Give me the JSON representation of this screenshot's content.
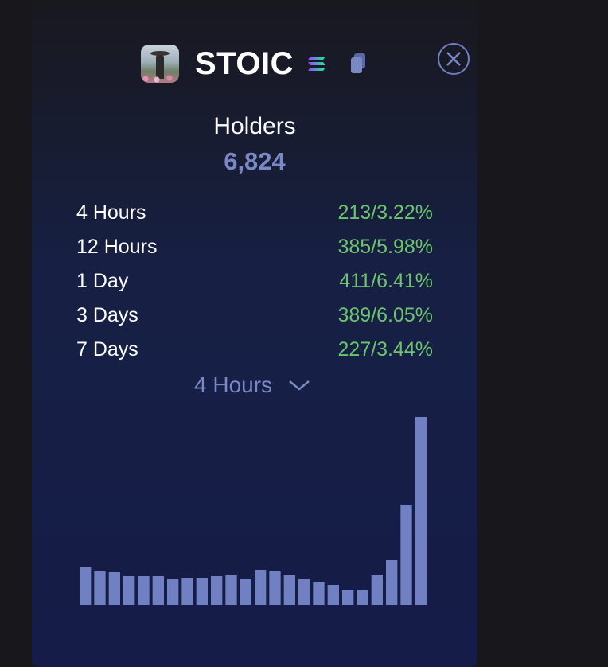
{
  "token": {
    "name": "STOIC",
    "avatar_icon": "samurai-avatar",
    "chain_icon": "solana-icon",
    "copy_icon": "copy-icon",
    "close_icon": "close-icon"
  },
  "holders": {
    "label": "Holders",
    "value": "6,824"
  },
  "periods": [
    {
      "label": "4 Hours",
      "change": "213/3.22%"
    },
    {
      "label": "12 Hours",
      "change": "385/5.98%"
    },
    {
      "label": "1 Day",
      "change": "411/6.41%"
    },
    {
      "label": "3 Days",
      "change": "389/6.05%"
    },
    {
      "label": "7 Days",
      "change": "227/3.44%"
    }
  ],
  "dropdown": {
    "selected": "4 Hours"
  },
  "colors": {
    "accent": "#7a88c4",
    "positive": "#6cc46c",
    "bar": "#7180c2"
  },
  "chart_data": {
    "type": "bar",
    "values": [
      48,
      42,
      41,
      36,
      36,
      36,
      32,
      34,
      34,
      36,
      37,
      33,
      44,
      42,
      37,
      33,
      29,
      25,
      19,
      19,
      38,
      56,
      126,
      236
    ],
    "ylim": [
      0,
      236
    ]
  }
}
